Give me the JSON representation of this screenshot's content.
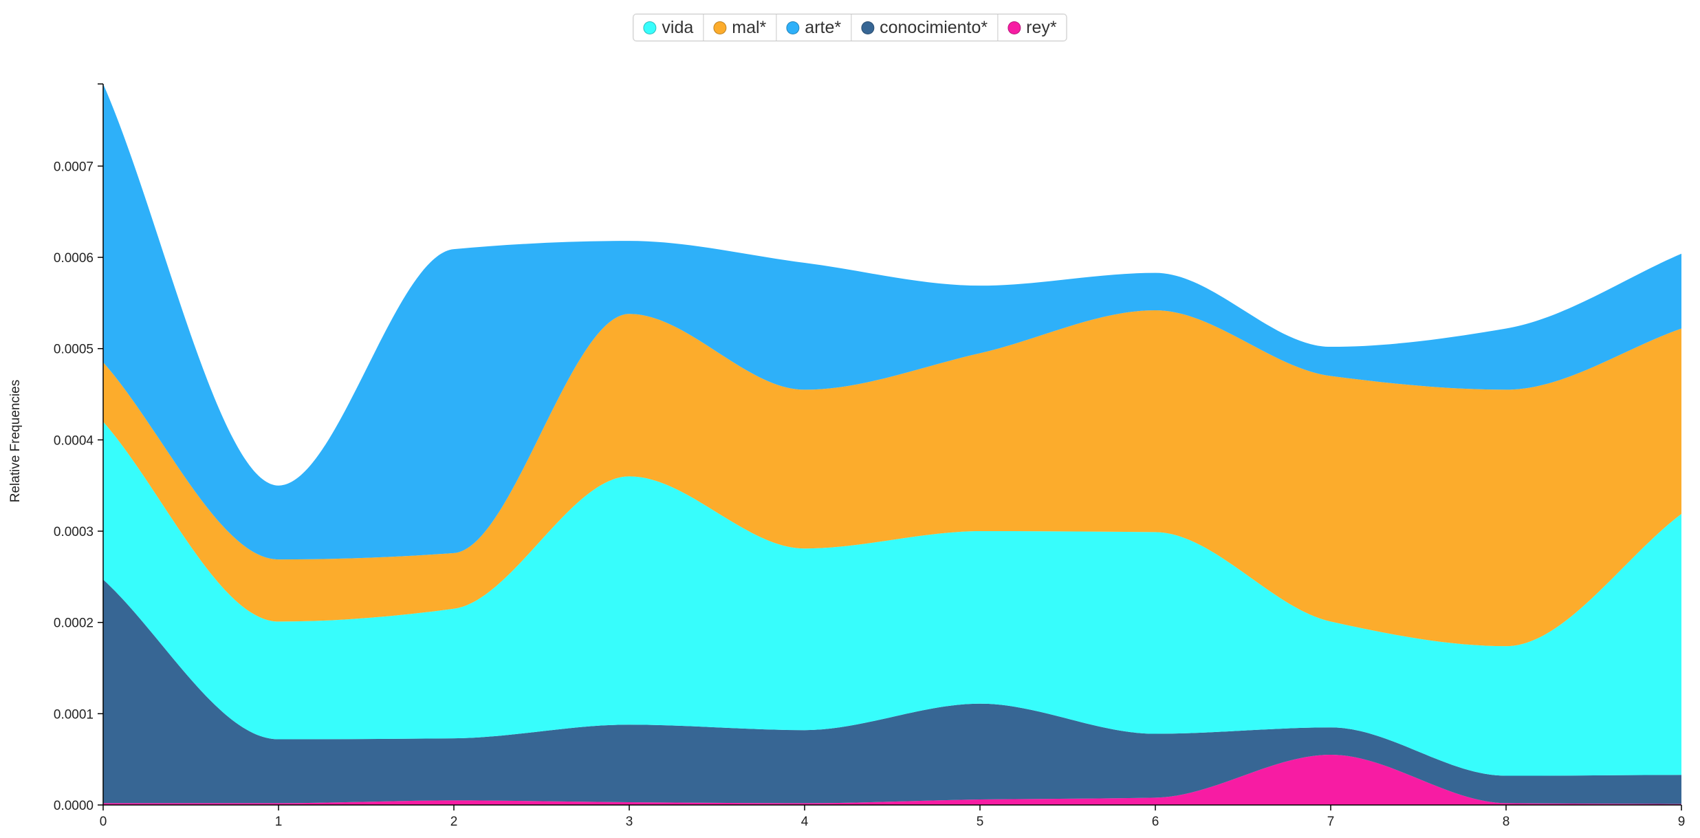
{
  "chart_data": {
    "type": "area",
    "stacked": true,
    "interpolation": "smooth",
    "x": [
      0,
      1,
      2,
      3,
      4,
      5,
      6,
      7,
      8,
      9
    ],
    "xticks": [
      "0",
      "1",
      "2",
      "3",
      "4",
      "5",
      "6",
      "7",
      "8",
      "9"
    ],
    "ylim": [
      0,
      0.00079
    ],
    "yticks": [
      "0.0000",
      "0.0001",
      "0.0002",
      "0.0003",
      "0.0004",
      "0.0005",
      "0.0006",
      "0.0007"
    ],
    "ytick_values": [
      0,
      0.0001,
      0.0002,
      0.0003,
      0.0004,
      0.0005,
      0.0006,
      0.0007
    ],
    "ylabel": "Relative Frequencies",
    "xlabel": "",
    "legend_position": "top-center",
    "grid": false,
    "series": [
      {
        "name": "rey*",
        "color": "#f71ca3",
        "values": [
          2e-06,
          2e-06,
          5e-06,
          3e-06,
          2e-06,
          6e-06,
          8e-06,
          5.5e-05,
          2e-06,
          1e-06
        ]
      },
      {
        "name": "conocimiento*",
        "color": "#376694",
        "values": [
          0.000245,
          7e-05,
          6.8e-05,
          8.5e-05,
          8e-05,
          0.000105,
          7e-05,
          3e-05,
          3e-05,
          3.2e-05
        ]
      },
      {
        "name": "vida",
        "color": "#37fdfc",
        "values": [
          0.000173,
          0.000129,
          0.000142,
          0.000272,
          0.000199,
          0.000189,
          0.000221,
          0.000116,
          0.000142,
          0.000286
        ]
      },
      {
        "name": "mal*",
        "color": "#fcac2c",
        "values": [
          6.5e-05,
          6.8e-05,
          6.1e-05,
          0.000178,
          0.000174,
          0.000195,
          0.000243,
          0.000269,
          0.000281,
          0.000203
        ]
      },
      {
        "name": "arte*",
        "color": "#2eb0f9",
        "values": [
          0.000305,
          8.1e-05,
          0.000333,
          8e-05,
          0.000139,
          7.4e-05,
          4.1e-05,
          3.2e-05,
          6.7e-05,
          8.2e-05
        ]
      }
    ]
  },
  "legend": [
    {
      "label": "vida",
      "color": "#37fdfc",
      "icon": "circle"
    },
    {
      "label": "mal*",
      "color": "#fcac2c",
      "icon": "circle"
    },
    {
      "label": "arte*",
      "color": "#2eb0f9",
      "icon": "circle"
    },
    {
      "label": "conocimiento*",
      "color": "#376694",
      "icon": "circle"
    },
    {
      "label": "rey*",
      "color": "#f71ca3",
      "icon": "circle"
    }
  ]
}
